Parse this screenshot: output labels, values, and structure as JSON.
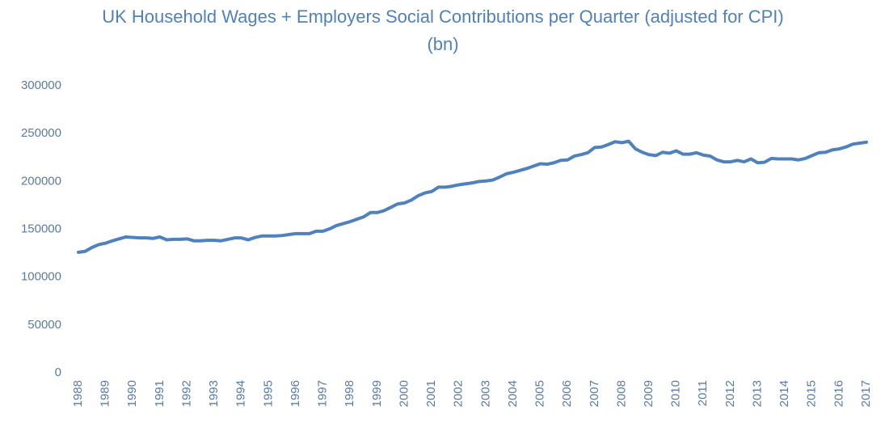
{
  "chart_data": {
    "type": "line",
    "title": "UK Household Wages + Employers Social Contributions per Quarter (adjusted for CPI) (bn)",
    "categories": [
      "1988",
      null,
      null,
      null,
      "1989",
      null,
      null,
      null,
      "1990",
      null,
      null,
      null,
      "1991",
      null,
      null,
      null,
      "1992",
      null,
      null,
      null,
      "1993",
      null,
      null,
      null,
      "1994",
      null,
      null,
      null,
      "1995",
      null,
      null,
      null,
      "1996",
      null,
      null,
      null,
      "1997",
      null,
      null,
      null,
      "1998",
      null,
      null,
      null,
      "1999",
      null,
      null,
      null,
      "2000",
      null,
      null,
      null,
      "2001",
      null,
      null,
      null,
      "2002",
      null,
      null,
      null,
      "2003",
      null,
      null,
      null,
      "2004",
      null,
      null,
      null,
      "2005",
      null,
      null,
      null,
      "2006",
      null,
      null,
      null,
      "2007",
      null,
      null,
      null,
      "2008",
      null,
      null,
      null,
      "2009",
      null,
      null,
      null,
      "2010",
      null,
      null,
      null,
      "2011",
      null,
      null,
      null,
      "2012",
      null,
      null,
      null,
      "2013",
      null,
      null,
      null,
      "2014",
      null,
      null,
      null,
      "2015",
      null,
      null,
      null,
      "2016",
      null,
      null,
      null,
      "2017"
    ],
    "values": [
      126000,
      127000,
      131000,
      134000,
      135500,
      138000,
      140000,
      142000,
      141500,
      141000,
      141000,
      140500,
      142000,
      139000,
      139500,
      139500,
      140000,
      138000,
      138000,
      138500,
      138500,
      138000,
      139500,
      141000,
      141000,
      139000,
      141500,
      143000,
      143000,
      143000,
      143500,
      144500,
      145500,
      145500,
      145500,
      148000,
      148000,
      150500,
      154000,
      156000,
      158000,
      160500,
      163000,
      167500,
      167500,
      169500,
      173000,
      176500,
      177500,
      180500,
      185000,
      188000,
      189500,
      194000,
      194000,
      195000,
      196500,
      197500,
      198500,
      200000,
      200500,
      201500,
      204500,
      208000,
      209500,
      211500,
      213500,
      216000,
      218500,
      218000,
      219500,
      222000,
      222500,
      226500,
      228000,
      230000,
      235500,
      236000,
      238500,
      241500,
      240500,
      242000,
      234000,
      230500,
      228000,
      227000,
      230500,
      229500,
      232000,
      228500,
      228500,
      230000,
      227500,
      226500,
      222500,
      220500,
      220500,
      222000,
      220500,
      223500,
      219500,
      220000,
      224000,
      223500,
      223500,
      223500,
      222500,
      224000,
      227000,
      230000,
      230500,
      233000,
      234000,
      236000,
      239000,
      240000,
      241000
    ],
    "color": "#4f81bd",
    "ylim": [
      0,
      300000
    ],
    "yticks": [
      0,
      50000,
      100000,
      150000,
      200000,
      250000,
      300000
    ]
  }
}
